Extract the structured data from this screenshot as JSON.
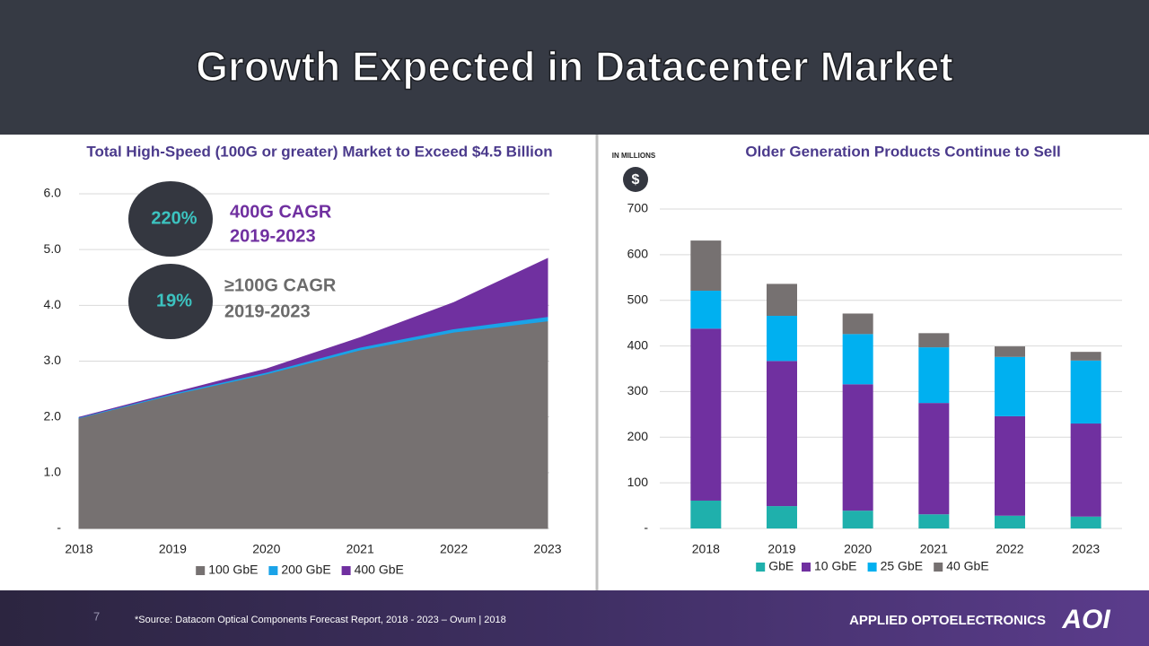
{
  "header": {
    "title": "Growth Expected in Datacenter Market"
  },
  "chart_data": [
    {
      "type": "area",
      "stacked": true,
      "title": "Total High-Speed (100G or greater) Market to Exceed $4.5 Billion",
      "categories": [
        "2018",
        "2019",
        "2020",
        "2021",
        "2022",
        "2023"
      ],
      "series": [
        {
          "name": "100 GbE",
          "color": "#767171",
          "values": [
            1.98,
            2.4,
            2.77,
            3.2,
            3.52,
            3.72
          ]
        },
        {
          "name": "200 GbE",
          "color": "#1aa3e8",
          "values": [
            0.01,
            0.02,
            0.03,
            0.05,
            0.06,
            0.08
          ]
        },
        {
          "name": "400 GbE",
          "color": "#7030a0",
          "values": [
            0,
            0.01,
            0.06,
            0.17,
            0.47,
            1.04
          ]
        }
      ],
      "ylim": [
        0,
        6
      ],
      "yticks": [
        {
          "value": 0,
          "label": "-"
        },
        {
          "value": 1,
          "label": "1.0"
        },
        {
          "value": 2,
          "label": "2.0"
        },
        {
          "value": 3,
          "label": "3.0"
        },
        {
          "value": 4,
          "label": "4.0"
        },
        {
          "value": 5,
          "label": "5.0"
        },
        {
          "value": 6,
          "label": "6.0"
        }
      ],
      "grid": true,
      "legend": "bottom",
      "annotations": [
        {
          "value": "220%",
          "label": "400G CAGR",
          "period": "2019-2023"
        },
        {
          "value": "19%",
          "label": "≥100G CAGR",
          "period": "2019-2023"
        }
      ]
    },
    {
      "type": "bar",
      "stacked": true,
      "title": "Older Generation Products Continue to Sell",
      "units_label": "IN MILLIONS",
      "units_symbol": "$",
      "categories": [
        "2018",
        "2019",
        "2020",
        "2021",
        "2022",
        "2023"
      ],
      "series": [
        {
          "name": "GbE",
          "color": "#1fb0ac",
          "values": [
            61,
            49,
            39,
            31,
            28,
            26
          ]
        },
        {
          "name": "10 GbE",
          "color": "#7030a0",
          "values": [
            377,
            318,
            277,
            244,
            218,
            204
          ]
        },
        {
          "name": "25 GbE",
          "color": "#00b0f0",
          "values": [
            83,
            99,
            110,
            122,
            130,
            138
          ]
        },
        {
          "name": "40 GbE",
          "color": "#767171",
          "values": [
            110,
            70,
            45,
            31,
            23,
            19
          ]
        }
      ],
      "ylim": [
        0,
        700
      ],
      "yticks": [
        {
          "value": 0,
          "label": "-"
        },
        100,
        200,
        300,
        400,
        500,
        600,
        700
      ],
      "grid": true,
      "legend": "bottom"
    }
  ],
  "footer": {
    "page": "7",
    "source": "*Source: Datacom Optical Components Forecast Report, 2018 - 2023 – Ovum | 2018",
    "company": "APPLIED OPTOELECTRONICS",
    "logo": "AOI"
  }
}
